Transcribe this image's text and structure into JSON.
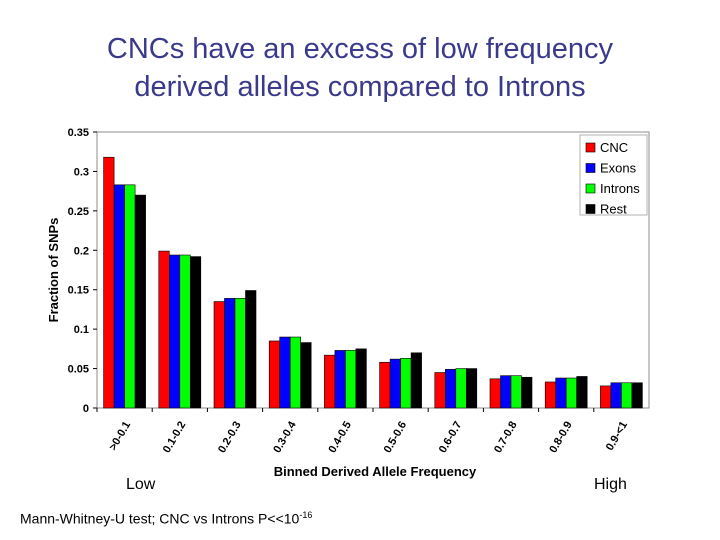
{
  "slide": {
    "title_line1": "CNCs have an excess of low frequency",
    "title_line2": "derived alleles compared to Introns",
    "low_label": "Low",
    "high_label": "High",
    "footnote_main": "Mann-Whitney-U test; CNC vs Introns P<<10",
    "footnote_exp": "-16"
  },
  "chart_data": {
    "type": "bar",
    "xlabel": "Binned Derived Allele Frequency",
    "ylabel": "Fraction of SNPs",
    "ylim": [
      0,
      0.35
    ],
    "yticks": [
      "0",
      "0.05",
      "0.1",
      "0.15",
      "0.2",
      "0.25",
      "0.3",
      "0.35"
    ],
    "categories": [
      ">0-0.1",
      "0.1-0.2",
      "0.2-0.3",
      "0.3-0.4",
      "0.4-0.5",
      "0.5-0.6",
      "0.6-0.7",
      "0.7-0.8",
      "0.8-0.9",
      "0.9-<1"
    ],
    "series": [
      {
        "name": "CNC",
        "color": "#ff0000",
        "values": [
          0.318,
          0.199,
          0.135,
          0.085,
          0.067,
          0.058,
          0.045,
          0.037,
          0.033,
          0.028
        ]
      },
      {
        "name": "Exons",
        "color": "#0000ff",
        "values": [
          0.283,
          0.194,
          0.139,
          0.09,
          0.073,
          0.062,
          0.049,
          0.041,
          0.038,
          0.032
        ]
      },
      {
        "name": "Introns",
        "color": "#00ff00",
        "values": [
          0.283,
          0.194,
          0.139,
          0.09,
          0.073,
          0.063,
          0.05,
          0.041,
          0.038,
          0.032
        ]
      },
      {
        "name": "Rest",
        "color": "#000000",
        "values": [
          0.27,
          0.192,
          0.149,
          0.083,
          0.075,
          0.07,
          0.05,
          0.039,
          0.04,
          0.032
        ]
      }
    ],
    "legend_position": "top-right",
    "grid": false
  }
}
